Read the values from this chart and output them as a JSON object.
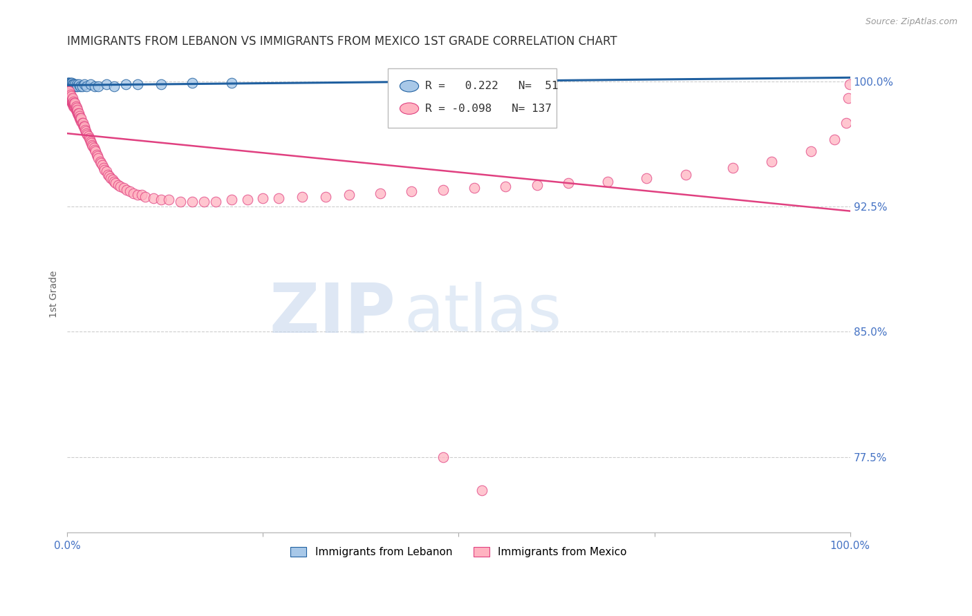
{
  "title": "IMMIGRANTS FROM LEBANON VS IMMIGRANTS FROM MEXICO 1ST GRADE CORRELATION CHART",
  "source": "Source: ZipAtlas.com",
  "ylabel": "1st Grade",
  "ytick_labels": [
    "100.0%",
    "92.5%",
    "85.0%",
    "77.5%"
  ],
  "ytick_values": [
    1.0,
    0.925,
    0.85,
    0.775
  ],
  "legend_lebanon": "Immigrants from Lebanon",
  "legend_mexico": "Immigrants from Mexico",
  "R_lebanon": 0.222,
  "N_lebanon": 51,
  "R_mexico": -0.098,
  "N_mexico": 137,
  "color_lebanon": "#a8c8e8",
  "color_mexico": "#ffb3c1",
  "color_line_lebanon": "#2060a0",
  "color_line_mexico": "#e04080",
  "color_tick_labels": "#4472C4",
  "xmin": 0.0,
  "xmax": 1.0,
  "ymin": 0.73,
  "ymax": 1.015,
  "lebanon_x": [
    0.001,
    0.001,
    0.001,
    0.001,
    0.001,
    0.002,
    0.002,
    0.002,
    0.002,
    0.002,
    0.002,
    0.003,
    0.003,
    0.003,
    0.003,
    0.003,
    0.004,
    0.004,
    0.004,
    0.004,
    0.005,
    0.005,
    0.005,
    0.005,
    0.006,
    0.006,
    0.006,
    0.007,
    0.007,
    0.008,
    0.008,
    0.009,
    0.01,
    0.011,
    0.012,
    0.013,
    0.015,
    0.017,
    0.019,
    0.022,
    0.025,
    0.03,
    0.035,
    0.04,
    0.05,
    0.06,
    0.075,
    0.09,
    0.12,
    0.16,
    0.21
  ],
  "lebanon_y": [
    0.997,
    0.997,
    0.998,
    0.998,
    0.999,
    0.997,
    0.997,
    0.998,
    0.998,
    0.999,
    0.999,
    0.997,
    0.997,
    0.998,
    0.998,
    0.999,
    0.997,
    0.997,
    0.998,
    0.999,
    0.997,
    0.998,
    0.998,
    0.999,
    0.997,
    0.998,
    0.999,
    0.997,
    0.998,
    0.997,
    0.998,
    0.997,
    0.998,
    0.997,
    0.998,
    0.997,
    0.998,
    0.997,
    0.997,
    0.998,
    0.997,
    0.998,
    0.997,
    0.997,
    0.998,
    0.997,
    0.998,
    0.998,
    0.998,
    0.999,
    0.999
  ],
  "mexico_x": [
    0.001,
    0.001,
    0.001,
    0.002,
    0.002,
    0.002,
    0.002,
    0.003,
    0.003,
    0.003,
    0.003,
    0.003,
    0.004,
    0.004,
    0.004,
    0.004,
    0.005,
    0.005,
    0.005,
    0.005,
    0.006,
    0.006,
    0.006,
    0.007,
    0.007,
    0.007,
    0.007,
    0.007,
    0.008,
    0.008,
    0.008,
    0.008,
    0.009,
    0.009,
    0.009,
    0.01,
    0.01,
    0.01,
    0.01,
    0.011,
    0.011,
    0.011,
    0.012,
    0.012,
    0.012,
    0.013,
    0.013,
    0.013,
    0.014,
    0.014,
    0.015,
    0.015,
    0.015,
    0.016,
    0.016,
    0.017,
    0.017,
    0.018,
    0.018,
    0.018,
    0.019,
    0.02,
    0.02,
    0.021,
    0.022,
    0.022,
    0.023,
    0.024,
    0.025,
    0.026,
    0.027,
    0.028,
    0.029,
    0.03,
    0.031,
    0.032,
    0.033,
    0.034,
    0.035,
    0.036,
    0.038,
    0.039,
    0.04,
    0.042,
    0.043,
    0.045,
    0.047,
    0.048,
    0.05,
    0.052,
    0.054,
    0.056,
    0.058,
    0.06,
    0.062,
    0.065,
    0.068,
    0.072,
    0.076,
    0.08,
    0.085,
    0.09,
    0.095,
    0.1,
    0.11,
    0.12,
    0.13,
    0.145,
    0.16,
    0.175,
    0.19,
    0.21,
    0.23,
    0.25,
    0.27,
    0.3,
    0.33,
    0.36,
    0.4,
    0.44,
    0.48,
    0.52,
    0.56,
    0.6,
    0.64,
    0.69,
    0.74,
    0.79,
    0.85,
    0.9,
    0.95,
    0.98,
    0.995,
    0.998,
    0.999,
    0.48,
    0.53
  ],
  "mexico_y": [
    0.992,
    0.993,
    0.994,
    0.991,
    0.992,
    0.993,
    0.994,
    0.99,
    0.991,
    0.992,
    0.993,
    0.994,
    0.989,
    0.99,
    0.991,
    0.992,
    0.988,
    0.989,
    0.99,
    0.991,
    0.987,
    0.988,
    0.989,
    0.986,
    0.987,
    0.988,
    0.989,
    0.99,
    0.985,
    0.986,
    0.987,
    0.988,
    0.985,
    0.986,
    0.987,
    0.984,
    0.985,
    0.986,
    0.987,
    0.983,
    0.984,
    0.985,
    0.982,
    0.983,
    0.984,
    0.981,
    0.982,
    0.983,
    0.98,
    0.981,
    0.979,
    0.98,
    0.981,
    0.978,
    0.979,
    0.977,
    0.978,
    0.976,
    0.977,
    0.978,
    0.975,
    0.974,
    0.975,
    0.973,
    0.972,
    0.973,
    0.971,
    0.97,
    0.969,
    0.968,
    0.967,
    0.966,
    0.965,
    0.964,
    0.963,
    0.962,
    0.961,
    0.96,
    0.959,
    0.958,
    0.956,
    0.955,
    0.954,
    0.952,
    0.951,
    0.95,
    0.948,
    0.947,
    0.946,
    0.944,
    0.943,
    0.942,
    0.941,
    0.94,
    0.939,
    0.938,
    0.937,
    0.936,
    0.935,
    0.934,
    0.933,
    0.932,
    0.932,
    0.931,
    0.93,
    0.929,
    0.929,
    0.928,
    0.928,
    0.928,
    0.928,
    0.929,
    0.929,
    0.93,
    0.93,
    0.931,
    0.931,
    0.932,
    0.933,
    0.934,
    0.935,
    0.936,
    0.937,
    0.938,
    0.939,
    0.94,
    0.942,
    0.944,
    0.948,
    0.952,
    0.958,
    0.965,
    0.975,
    0.99,
    0.998,
    0.775,
    0.755
  ]
}
